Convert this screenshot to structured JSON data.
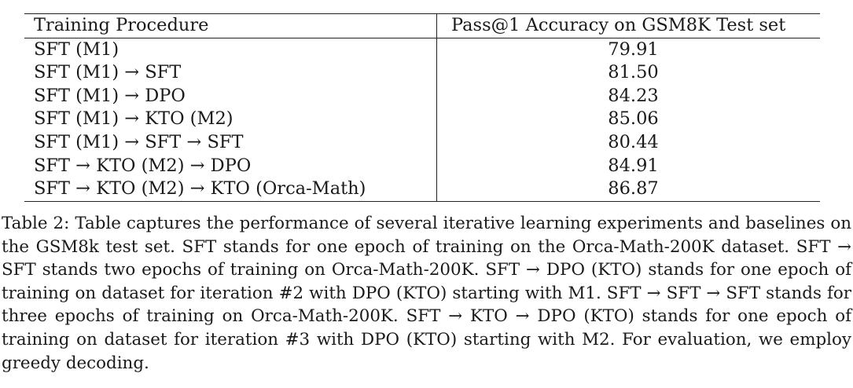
{
  "table": {
    "headers": [
      "Training Procedure",
      "Pass@1 Accuracy on GSM8K Test set"
    ],
    "rows": [
      {
        "procedure": "SFT (M1)",
        "accuracy": "79.91"
      },
      {
        "procedure": "SFT (M1) → SFT",
        "accuracy": "81.50"
      },
      {
        "procedure": "SFT (M1) → DPO",
        "accuracy": "84.23"
      },
      {
        "procedure": "SFT (M1) → KTO (M2)",
        "accuracy": "85.06"
      },
      {
        "procedure": "SFT (M1) → SFT → SFT",
        "accuracy": "80.44"
      },
      {
        "procedure": "SFT → KTO (M2) → DPO",
        "accuracy": "84.91"
      },
      {
        "procedure": "SFT → KTO (M2) → KTO (Orca-Math)",
        "accuracy": "86.87",
        "bold": true
      }
    ]
  },
  "caption": {
    "text": "Table 2: Table captures the performance of several iterative learning experiments and baselines on the GSM8k test set. SFT stands for one epoch of training on the Orca-Math-200K dataset. SFT → SFT stands two epochs of training on Orca-Math-200K. SFT → DPO (KTO) stands for one epoch of training on dataset for iteration #2 with DPO (KTO) starting with M1. SFT → SFT → SFT stands for three epochs of training on Orca-Math-200K. SFT → KTO → DPO (KTO) stands for one epoch of training on dataset for iteration #3 with DPO (KTO) starting with M2. For evaluation, we employ greedy decoding."
  }
}
